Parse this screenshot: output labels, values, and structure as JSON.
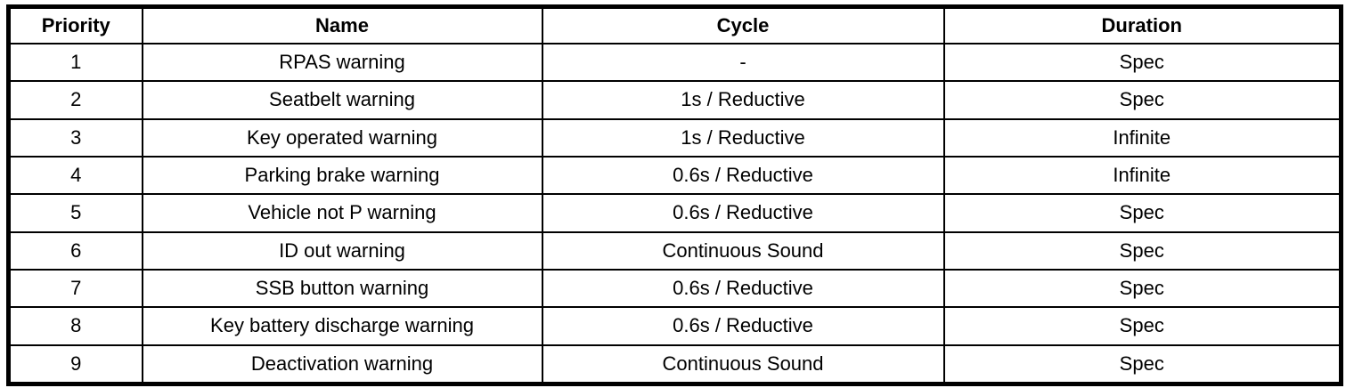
{
  "colors": {
    "border": "#000000",
    "background": "#ffffff",
    "text": "#000000"
  },
  "table": {
    "columns": [
      "Priority",
      "Name",
      "Cycle",
      "Duration"
    ],
    "rows": [
      {
        "priority": "1",
        "name": "RPAS warning",
        "cycle": "-",
        "duration": "Spec"
      },
      {
        "priority": "2",
        "name": "Seatbelt warning",
        "cycle": "1s / Reductive",
        "duration": "Spec"
      },
      {
        "priority": "3",
        "name": "Key operated warning",
        "cycle": "1s / Reductive",
        "duration": "Infinite"
      },
      {
        "priority": "4",
        "name": "Parking brake warning",
        "cycle": "0.6s / Reductive",
        "duration": "Infinite"
      },
      {
        "priority": "5",
        "name": "Vehicle not P warning",
        "cycle": "0.6s / Reductive",
        "duration": "Spec"
      },
      {
        "priority": "6",
        "name": "ID out warning",
        "cycle": "Continuous Sound",
        "duration": "Spec"
      },
      {
        "priority": "7",
        "name": "SSB button warning",
        "cycle": "0.6s / Reductive",
        "duration": "Spec"
      },
      {
        "priority": "8",
        "name": "Key battery discharge warning",
        "cycle": "0.6s / Reductive",
        "duration": "Spec"
      },
      {
        "priority": "9",
        "name": "Deactivation warning",
        "cycle": "Continuous Sound",
        "duration": "Spec"
      }
    ]
  }
}
